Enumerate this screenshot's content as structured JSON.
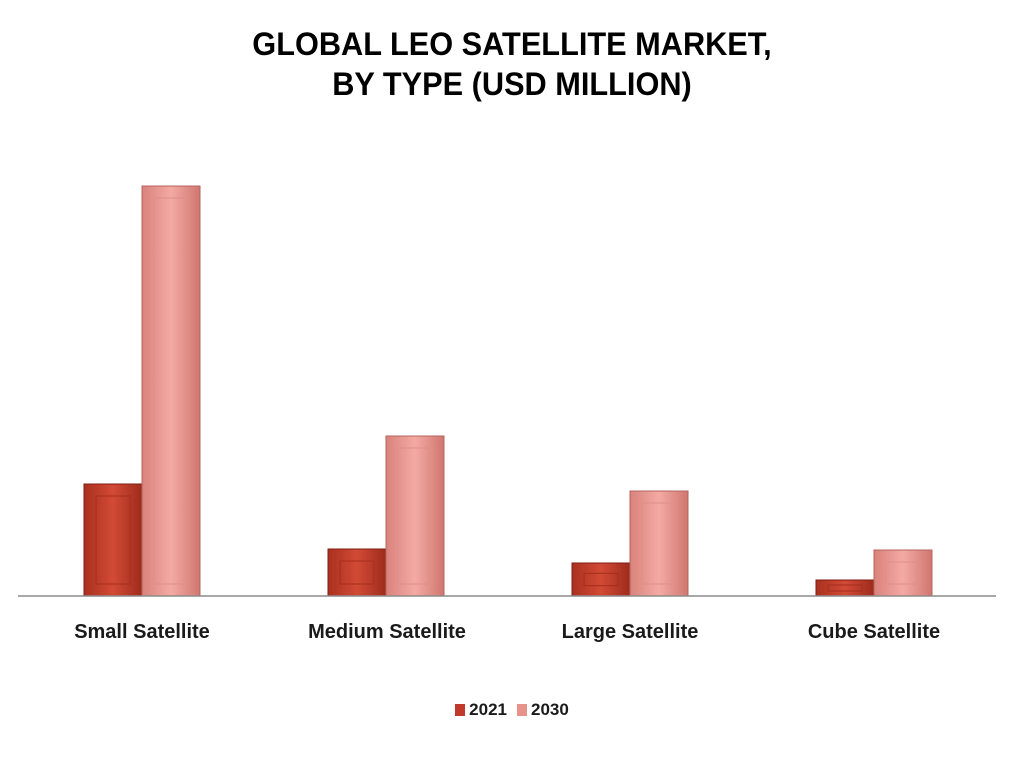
{
  "chart_data": {
    "type": "bar",
    "title_lines": [
      "GLOBAL LEO SATELLITE MARKET,",
      "BY TYPE (USD MILLION)"
    ],
    "categories": [
      "Small Satellite",
      "Medium Satellite",
      "Large Satellite",
      "Cube Satellite"
    ],
    "series": [
      {
        "name": "2021",
        "values": [
          112,
          47,
          33,
          16
        ],
        "color": "#c0392b"
      },
      {
        "name": "2030",
        "values": [
          410,
          160,
          105,
          46
        ],
        "color": "#e8928c"
      }
    ],
    "ylim": [
      0,
      430
    ],
    "grid": false,
    "legend": "bottom"
  }
}
